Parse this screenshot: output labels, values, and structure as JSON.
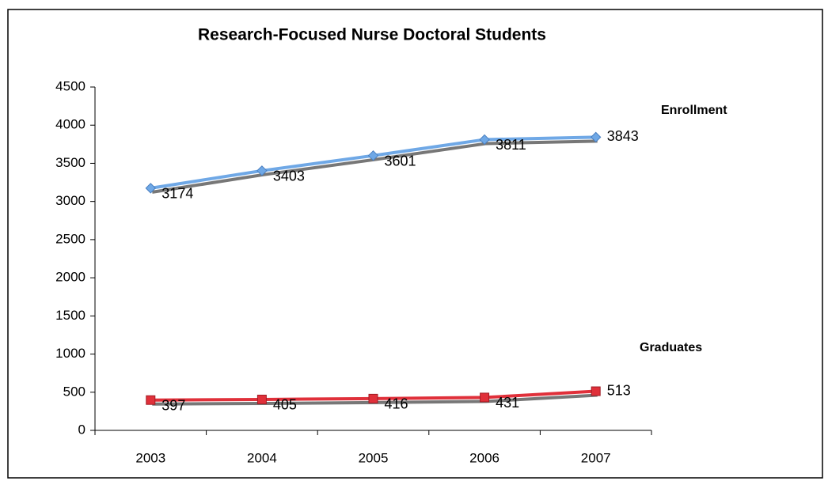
{
  "chart_data": {
    "type": "line",
    "title": "Research-Focused Nurse Doctoral Students",
    "categories": [
      "2003",
      "2004",
      "2005",
      "2006",
      "2007"
    ],
    "series": [
      {
        "name": "Enrollment",
        "color": "#6fa8e6",
        "marker": "diamond",
        "values": [
          3174,
          3403,
          3601,
          3811,
          3843
        ]
      },
      {
        "name": "Graduates",
        "color": "#e0303a",
        "marker": "square",
        "values": [
          397,
          405,
          416,
          431,
          513
        ]
      }
    ],
    "ylim": [
      0,
      4500
    ],
    "yticks": [
      0,
      500,
      1000,
      1500,
      2000,
      2500,
      3000,
      3500,
      4000,
      4500
    ],
    "grid": false
  }
}
